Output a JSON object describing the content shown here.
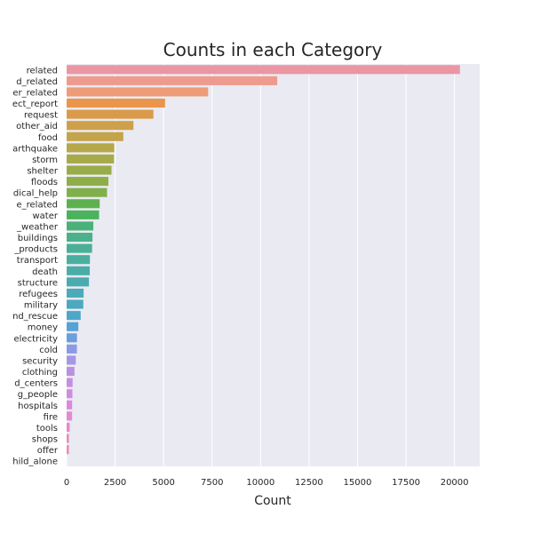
{
  "chart_data": {
    "type": "bar",
    "orientation": "horizontal",
    "title": "Counts in each Category",
    "xlabel": "Count",
    "ylabel": "",
    "xlim": [
      0,
      21300
    ],
    "x_ticks": [
      0,
      2500,
      5000,
      7500,
      10000,
      12500,
      15000,
      17500,
      20000
    ],
    "grid": true,
    "categories": [
      "related",
      "aid_related",
      "weather_related",
      "direct_report",
      "request",
      "other_aid",
      "food",
      "earthquake",
      "storm",
      "shelter",
      "floods",
      "medical_help",
      "infrastructure_related",
      "water",
      "other_weather",
      "buildings",
      "medical_products",
      "transport",
      "death",
      "other_infrastructure",
      "refugees",
      "military",
      "search_and_rescue",
      "money",
      "electricity",
      "cold",
      "security",
      "clothing",
      "aid_centers",
      "missing_people",
      "hospitals",
      "fire",
      "tools",
      "shops",
      "offer",
      "child_alone"
    ],
    "tick_labels": [
      "related",
      "d_related",
      "er_related",
      "ect_report",
      "request",
      "other_aid",
      "food",
      "arthquake",
      "storm",
      "shelter",
      "floods",
      "dical_help",
      "e_related",
      "water",
      "_weather",
      "buildings",
      "_products",
      "transport",
      "death",
      "structure",
      "refugees",
      "military",
      "nd_rescue",
      "money",
      "electricity",
      "cold",
      "security",
      "clothing",
      "d_centers",
      "g_people",
      "hospitals",
      "fire",
      "tools",
      "shops",
      "offer",
      "hild_alone"
    ],
    "values": [
      20282,
      10860,
      7297,
      5075,
      4474,
      3446,
      2923,
      2455,
      2443,
      2314,
      2155,
      2084,
      1705,
      1672,
      1376,
      1333,
      1313,
      1201,
      1194,
      1151,
      876,
      860,
      724,
      604,
      532,
      530,
      471,
      405,
      309,
      298,
      283,
      282,
      159,
      120,
      118,
      0
    ],
    "colors": [
      "#ea96a3",
      "#ee9a8e",
      "#ee9b77",
      "#e9954b",
      "#d99a49",
      "#cea04a",
      "#c4a44a",
      "#b5a84a",
      "#a8aa4a",
      "#9aac4a",
      "#8eae4a",
      "#80b04a",
      "#5db04e",
      "#4ab35c",
      "#4ab278",
      "#4ab18a",
      "#4ab095",
      "#4aaf9e",
      "#4aaea6",
      "#4aacaf",
      "#4babb8",
      "#4ca9c0",
      "#4ea7c9",
      "#55a2d5",
      "#6a9edf",
      "#8a9ae5",
      "#a597e6",
      "#b991e3",
      "#c68ee3",
      "#d28be2",
      "#dd88e0",
      "#e589d3",
      "#e88ac4",
      "#e98cb7",
      "#ea8fac",
      "#ea92a5"
    ]
  }
}
